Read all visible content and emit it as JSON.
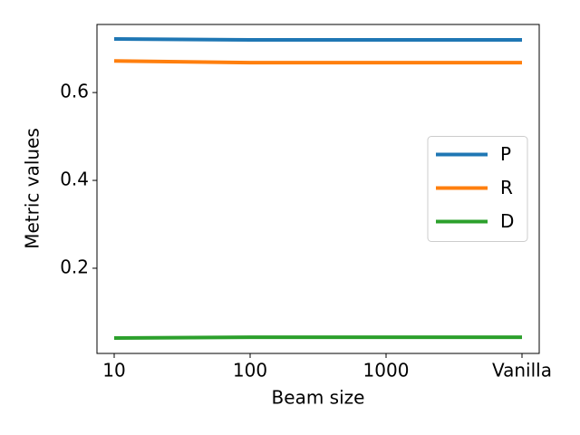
{
  "chart_data": {
    "type": "line",
    "x_label": "Beam size",
    "y_label": "Metric values",
    "categories": [
      "10",
      "100",
      "1000",
      "Vanilla"
    ],
    "series": [
      {
        "name": "P",
        "color": "#1f77b4",
        "values": [
          0.722,
          0.72,
          0.72,
          0.72
        ]
      },
      {
        "name": "R",
        "color": "#ff7f0e",
        "values": [
          0.672,
          0.668,
          0.668,
          0.668
        ]
      },
      {
        "name": "D",
        "color": "#2ca02c",
        "values": [
          0.041,
          0.043,
          0.043,
          0.043
        ]
      }
    ],
    "ylim": [
      0.006,
      0.755
    ],
    "yticks": [
      0.2,
      0.4,
      0.6
    ],
    "grid": false,
    "legend": "center right"
  }
}
